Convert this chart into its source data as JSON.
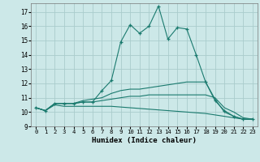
{
  "xlabel": "Humidex (Indice chaleur)",
  "xlim": [
    -0.5,
    23.5
  ],
  "ylim": [
    9,
    17.6
  ],
  "yticks": [
    9,
    10,
    11,
    12,
    13,
    14,
    15,
    16,
    17
  ],
  "xticks": [
    0,
    1,
    2,
    3,
    4,
    5,
    6,
    7,
    8,
    9,
    10,
    11,
    12,
    13,
    14,
    15,
    16,
    17,
    18,
    19,
    20,
    21,
    22,
    23
  ],
  "bg_color": "#cce8e8",
  "grid_color": "#aacccc",
  "line_color": "#1a7a6e",
  "lines": [
    {
      "x": [
        0,
        1,
        2,
        3,
        4,
        5,
        6,
        7,
        8,
        9,
        10,
        11,
        12,
        13,
        14,
        15,
        16,
        17,
        18,
        19,
        20,
        21,
        22,
        23
      ],
      "y": [
        10.3,
        10.1,
        10.6,
        10.6,
        10.6,
        10.7,
        10.7,
        11.5,
        12.2,
        14.9,
        16.1,
        15.5,
        16.0,
        17.4,
        15.1,
        15.9,
        15.8,
        14.0,
        12.1,
        10.8,
        10.1,
        9.7,
        9.5,
        9.5
      ],
      "marker": "+"
    },
    {
      "x": [
        0,
        1,
        2,
        3,
        4,
        5,
        6,
        7,
        8,
        9,
        10,
        11,
        12,
        13,
        14,
        15,
        16,
        17,
        18,
        19,
        20,
        21,
        22,
        23
      ],
      "y": [
        10.3,
        10.1,
        10.6,
        10.6,
        10.6,
        10.8,
        10.9,
        11.0,
        11.3,
        11.5,
        11.6,
        11.6,
        11.7,
        11.8,
        11.9,
        12.0,
        12.1,
        12.1,
        12.1,
        10.9,
        10.0,
        9.7,
        9.5,
        9.5
      ],
      "marker": null
    },
    {
      "x": [
        0,
        1,
        2,
        3,
        4,
        5,
        6,
        7,
        8,
        9,
        10,
        11,
        12,
        13,
        14,
        15,
        16,
        17,
        18,
        19,
        20,
        21,
        22,
        23
      ],
      "y": [
        10.3,
        10.1,
        10.6,
        10.6,
        10.6,
        10.7,
        10.7,
        10.8,
        10.9,
        11.0,
        11.1,
        11.1,
        11.2,
        11.2,
        11.2,
        11.2,
        11.2,
        11.2,
        11.2,
        11.0,
        10.3,
        10.0,
        9.6,
        9.5
      ],
      "marker": null
    },
    {
      "x": [
        0,
        1,
        2,
        3,
        4,
        5,
        6,
        7,
        8,
        9,
        10,
        11,
        12,
        13,
        14,
        15,
        16,
        17,
        18,
        19,
        20,
        21,
        22,
        23
      ],
      "y": [
        10.3,
        10.1,
        10.5,
        10.4,
        10.4,
        10.4,
        10.4,
        10.4,
        10.4,
        10.35,
        10.3,
        10.25,
        10.2,
        10.15,
        10.1,
        10.05,
        10.0,
        9.95,
        9.9,
        9.8,
        9.7,
        9.6,
        9.5,
        9.5
      ],
      "marker": null
    }
  ]
}
